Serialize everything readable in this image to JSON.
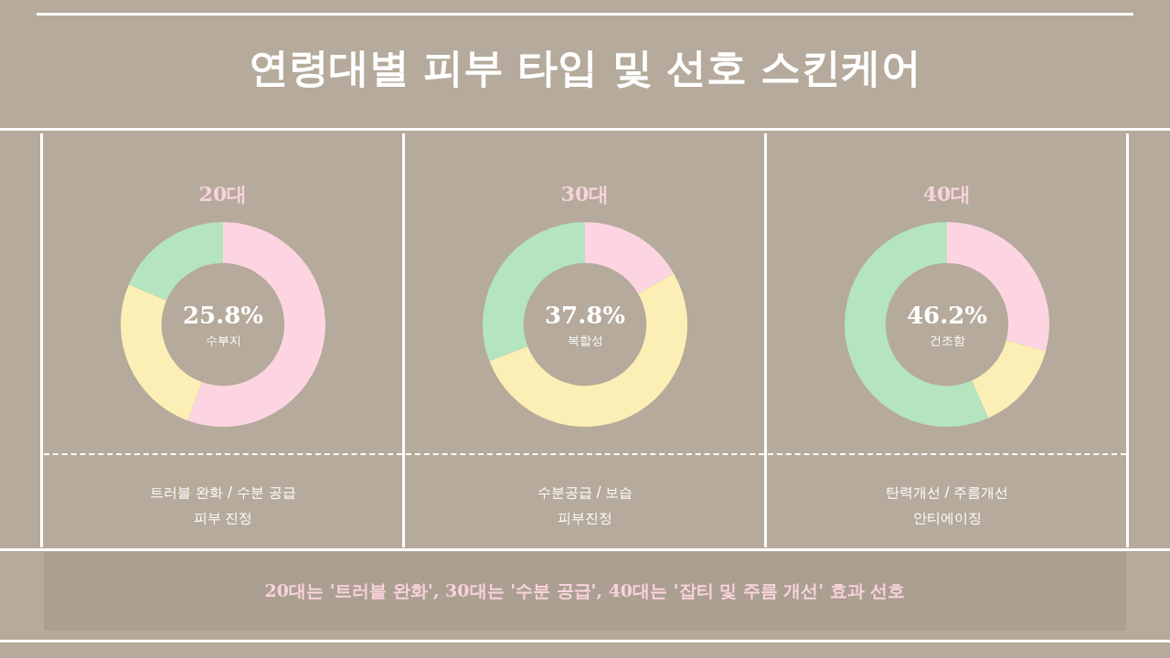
{
  "chart_data": [
    {
      "type": "other",
      "title": "연령대별 피부 타입 및 선호 스킨케어"
    },
    {
      "type": "donut",
      "title": "20대",
      "categories": [
        null,
        null,
        null
      ],
      "values": [
        55.6,
        25.8,
        18.6
      ],
      "colors": [
        "#fdd5e2",
        "#fbefb5",
        "#b4e4c0"
      ],
      "annotations": [
        "25.8%",
        "수부지",
        "트러블 완화 / 수분 공급",
        "피부 진정"
      ]
    },
    {
      "type": "donut",
      "title": "30대",
      "categories": [
        null,
        null,
        null
      ],
      "values": [
        16.7,
        52.5,
        30.8
      ],
      "colors": [
        "#fdd5e2",
        "#fbefb5",
        "#b4e4c0"
      ],
      "annotations": [
        "37.8%",
        "복합성",
        "수분공급 / 보습",
        "피부진정"
      ]
    },
    {
      "type": "donut",
      "title": "40대",
      "categories": [
        null,
        null,
        null
      ],
      "values": [
        29.2,
        14.2,
        56.6
      ],
      "colors": [
        "#fdd5e2",
        "#fbefb5",
        "#b4e4c0"
      ],
      "annotations": [
        "46.2%",
        "건조함",
        "탄력개선 / 주름개선",
        "안티에이징"
      ]
    },
    {
      "type": "other",
      "annotations": [
        "20대는 '트러블 완화', 30대는 '수분 공급', 40대는 '잡티 및 주름 개선' 효과 선호"
      ]
    }
  ]
}
